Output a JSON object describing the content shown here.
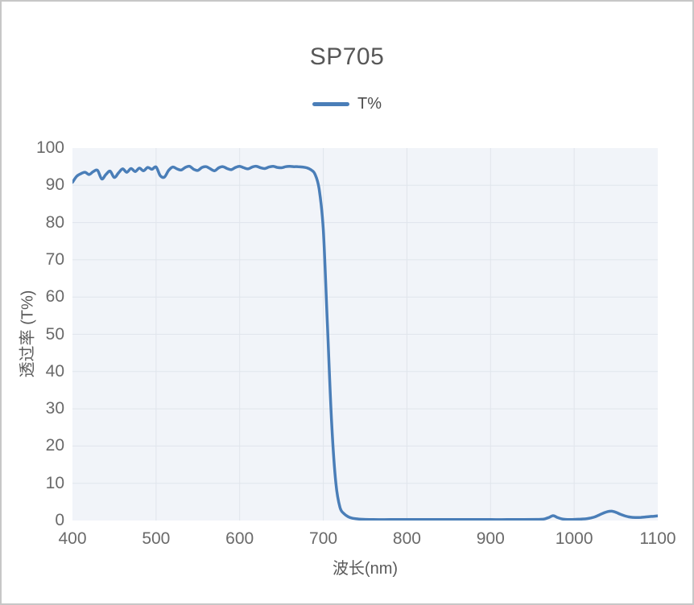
{
  "chart_data": {
    "type": "line",
    "title": "SP705",
    "xlabel": "波长(nm)",
    "ylabel": "透过率 (T%)",
    "xlim": [
      400,
      1100
    ],
    "ylim": [
      0,
      100
    ],
    "x_ticks": [
      400,
      500,
      600,
      700,
      800,
      900,
      1000,
      1100
    ],
    "y_ticks": [
      0,
      10,
      20,
      30,
      40,
      50,
      60,
      70,
      80,
      90,
      100
    ],
    "grid": true,
    "legend": {
      "position": "top",
      "entries": [
        "T%"
      ]
    },
    "colors": {
      "line": "#4a7eb8",
      "plot_bg": "#f1f4f9",
      "grid": "#e0e5ec",
      "title_text": "#575757",
      "tick_text": "#6a6a6a"
    },
    "series": [
      {
        "name": "T%",
        "color": "#4a7eb8",
        "points": [
          [
            400,
            90.8
          ],
          [
            405,
            92.4
          ],
          [
            410,
            93.1
          ],
          [
            415,
            93.5
          ],
          [
            420,
            92.9
          ],
          [
            425,
            93.7
          ],
          [
            430,
            94.0
          ],
          [
            435,
            91.7
          ],
          [
            440,
            92.9
          ],
          [
            445,
            93.8
          ],
          [
            450,
            92.1
          ],
          [
            455,
            93.3
          ],
          [
            460,
            94.4
          ],
          [
            465,
            93.5
          ],
          [
            470,
            94.5
          ],
          [
            475,
            93.7
          ],
          [
            480,
            94.6
          ],
          [
            485,
            93.9
          ],
          [
            490,
            94.8
          ],
          [
            495,
            94.3
          ],
          [
            500,
            94.9
          ],
          [
            505,
            92.6
          ],
          [
            510,
            92.2
          ],
          [
            515,
            94.0
          ],
          [
            520,
            94.9
          ],
          [
            525,
            94.4
          ],
          [
            530,
            94.1
          ],
          [
            535,
            94.8
          ],
          [
            540,
            95.1
          ],
          [
            545,
            94.3
          ],
          [
            550,
            94.0
          ],
          [
            555,
            94.8
          ],
          [
            560,
            95.0
          ],
          [
            565,
            94.4
          ],
          [
            570,
            93.9
          ],
          [
            575,
            94.7
          ],
          [
            580,
            95.0
          ],
          [
            585,
            94.5
          ],
          [
            590,
            94.2
          ],
          [
            595,
            94.8
          ],
          [
            600,
            95.1
          ],
          [
            605,
            94.7
          ],
          [
            610,
            94.4
          ],
          [
            615,
            94.9
          ],
          [
            620,
            95.1
          ],
          [
            625,
            94.7
          ],
          [
            630,
            94.5
          ],
          [
            635,
            94.9
          ],
          [
            640,
            95.1
          ],
          [
            645,
            94.8
          ],
          [
            650,
            94.7
          ],
          [
            655,
            95.0
          ],
          [
            660,
            95.1
          ],
          [
            665,
            95.0
          ],
          [
            670,
            95.0
          ],
          [
            675,
            94.9
          ],
          [
            680,
            94.7
          ],
          [
            685,
            94.2
          ],
          [
            690,
            93.0
          ],
          [
            695,
            89.0
          ],
          [
            700,
            78.0
          ],
          [
            705,
            52.0
          ],
          [
            710,
            26.0
          ],
          [
            715,
            10.0
          ],
          [
            720,
            3.5
          ],
          [
            725,
            1.8
          ],
          [
            730,
            1.0
          ],
          [
            735,
            0.6
          ],
          [
            740,
            0.45
          ],
          [
            745,
            0.35
          ],
          [
            750,
            0.3
          ],
          [
            760,
            0.25
          ],
          [
            780,
            0.25
          ],
          [
            800,
            0.25
          ],
          [
            820,
            0.25
          ],
          [
            840,
            0.25
          ],
          [
            860,
            0.25
          ],
          [
            880,
            0.25
          ],
          [
            900,
            0.25
          ],
          [
            920,
            0.25
          ],
          [
            940,
            0.27
          ],
          [
            955,
            0.3
          ],
          [
            960,
            0.32
          ],
          [
            965,
            0.45
          ],
          [
            970,
            0.85
          ],
          [
            975,
            1.3
          ],
          [
            980,
            0.8
          ],
          [
            985,
            0.45
          ],
          [
            990,
            0.3
          ],
          [
            995,
            0.28
          ],
          [
            1000,
            0.3
          ],
          [
            1005,
            0.35
          ],
          [
            1010,
            0.4
          ],
          [
            1015,
            0.5
          ],
          [
            1020,
            0.7
          ],
          [
            1025,
            1.0
          ],
          [
            1030,
            1.5
          ],
          [
            1035,
            2.0
          ],
          [
            1040,
            2.4
          ],
          [
            1045,
            2.5
          ],
          [
            1050,
            2.2
          ],
          [
            1055,
            1.7
          ],
          [
            1060,
            1.3
          ],
          [
            1065,
            1.0
          ],
          [
            1070,
            0.85
          ],
          [
            1075,
            0.8
          ],
          [
            1080,
            0.85
          ],
          [
            1085,
            0.95
          ],
          [
            1090,
            1.05
          ],
          [
            1095,
            1.15
          ],
          [
            1100,
            1.25
          ]
        ]
      }
    ]
  }
}
